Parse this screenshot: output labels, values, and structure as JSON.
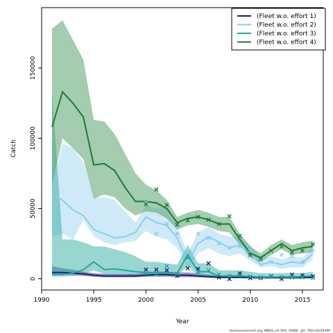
{
  "chart_data": {
    "type": "line",
    "title": "",
    "xlabel": "Year",
    "ylabel": "Catch",
    "xlim": [
      1990,
      2017
    ],
    "ylim": [
      -8000,
      193000
    ],
    "x_ticks": [
      1990,
      1995,
      2000,
      2005,
      2010,
      2015
    ],
    "y_ticks": [
      0,
      50000,
      100000,
      150000
    ],
    "legend_position": "top-right",
    "footnote": "stockassessment.org, WBSS_mf_004, r9468 , git: 792ca3e56499",
    "series": [
      {
        "name": "(Fleet w.o. effort 1)",
        "color": "#1f1d78",
        "band_color": "#2a2a86",
        "years": [
          1991,
          1992,
          1993,
          1994,
          1995,
          1996,
          1997,
          1998,
          1999,
          2000,
          2001,
          2002,
          2003,
          2004,
          2005,
          2006,
          2007,
          2008,
          2009,
          2010,
          2011,
          2012,
          2013,
          2014,
          2015,
          2016
        ],
        "fit": [
          4500,
          4500,
          4000,
          3500,
          2500,
          2000,
          2000,
          2000,
          2000,
          2500,
          3000,
          3000,
          2500,
          2500,
          2000,
          1500,
          1000,
          1000,
          1000,
          800,
          700,
          700,
          700,
          700,
          800,
          900
        ],
        "lower": [
          3000,
          3000,
          2500,
          2000,
          1500,
          1000,
          1000,
          1000,
          1000,
          1500,
          1500,
          1500,
          1200,
          1200,
          1000,
          700,
          400,
          400,
          400,
          300,
          250,
          250,
          250,
          250,
          300,
          350
        ],
        "upper": [
          9000,
          7500,
          6500,
          5000,
          4000,
          3500,
          3500,
          3500,
          3500,
          4500,
          5000,
          5000,
          4500,
          4500,
          4000,
          3000,
          2500,
          2500,
          2500,
          2000,
          1800,
          1800,
          1800,
          1800,
          2000,
          2200
        ],
        "obs_years": [
          2000,
          2001,
          2002,
          2003,
          2004,
          2005,
          2006,
          2007,
          2008,
          2009,
          2010,
          2011,
          2012,
          2013,
          2014,
          2015,
          2016
        ],
        "obs": [
          6500,
          6500,
          6000,
          2000,
          7500,
          7000,
          11000,
          1000,
          -200,
          3800,
          500,
          500,
          1800,
          -100,
          3000,
          2500,
          1800
        ]
      },
      {
        "name": "(Fleet w.o. effort 2)",
        "color": "#87ceeb",
        "band_color": "#9fd3f0",
        "years": [
          1991,
          1992,
          1993,
          1994,
          1995,
          1996,
          1997,
          1998,
          1999,
          2000,
          2001,
          2002,
          2003,
          2004,
          2005,
          2006,
          2007,
          2008,
          2009,
          2010,
          2011,
          2012,
          2013,
          2014,
          2015,
          2016
        ],
        "fit": [
          60000,
          56000,
          49000,
          45000,
          35000,
          32000,
          29000,
          30000,
          33000,
          44000,
          40000,
          38000,
          29000,
          12000,
          25000,
          30000,
          26000,
          22000,
          24000,
          18000,
          10000,
          12000,
          10000,
          12000,
          11000,
          18000
        ],
        "lower": [
          30000,
          32000,
          28000,
          42000,
          30000,
          26000,
          24000,
          26000,
          27000,
          34000,
          30000,
          28000,
          22000,
          8000,
          18000,
          22000,
          18000,
          16000,
          18000,
          13000,
          8000,
          9000,
          7000,
          8000,
          8000,
          14000
        ],
        "upper": [
          64000,
          96000,
          93000,
          83000,
          58000,
          58000,
          56000,
          48000,
          40000,
          52000,
          50000,
          50000,
          37000,
          18000,
          33000,
          37000,
          32000,
          30000,
          30000,
          24000,
          15000,
          16000,
          14000,
          16000,
          15000,
          23000
        ],
        "obs_years": [
          2000,
          2001,
          2002,
          2003,
          2004,
          2005,
          2006,
          2007,
          2008,
          2009,
          2010,
          2011,
          2012,
          2013,
          2014,
          2015,
          2016
        ],
        "obs": [
          54000,
          32000,
          39000,
          32000,
          12000,
          32000,
          29000,
          25000,
          22000,
          23000,
          20000,
          13000,
          12000,
          17000,
          16000,
          12000,
          20000
        ]
      },
      {
        "name": "(Fleet w.o. effort 3)",
        "color": "#20a79a",
        "band_color": "#35aea1",
        "years": [
          1991,
          1992,
          1993,
          1994,
          1995,
          1996,
          1997,
          1998,
          1999,
          2000,
          2001,
          2002,
          2003,
          2004,
          2005,
          2006,
          2007,
          2008,
          2009,
          2010,
          2011,
          2012,
          2013,
          2014,
          2015,
          2016
        ],
        "fit": [
          3000,
          3000,
          4000,
          6500,
          12000,
          6500,
          7000,
          6000,
          5000,
          4500,
          4500,
          4500,
          4000,
          17000,
          5000,
          5000,
          2000,
          2000,
          2000,
          1500,
          1000,
          1200,
          1200,
          1200,
          1500,
          2000
        ],
        "lower": [
          1500,
          1500,
          2000,
          3500,
          6000,
          3500,
          3500,
          3000,
          2500,
          2000,
          2000,
          2000,
          2000,
          9000,
          2500,
          2500,
          1000,
          1000,
          1000,
          700,
          500,
          600,
          600,
          600,
          700,
          900
        ],
        "upper": [
          133000,
          28000,
          28000,
          26000,
          23000,
          23000,
          21000,
          19000,
          16000,
          12000,
          12000,
          11000,
          10000,
          24000,
          11000,
          11000,
          6000,
          6000,
          6000,
          5000,
          4000,
          4000,
          4000,
          4000,
          4000,
          5000
        ],
        "obs_years": [
          2000,
          2001,
          2002,
          2003,
          2004,
          2005,
          2006,
          2007,
          2008,
          2009,
          2010,
          2011,
          2012,
          2013,
          2014,
          2015,
          2016
        ],
        "obs": [
          4000,
          3500,
          9000,
          3500,
          15000,
          5000,
          6000,
          3000,
          2000,
          2500,
          1500,
          1000,
          1500,
          1200,
          1000,
          1000,
          500
        ]
      },
      {
        "name": "(Fleet w.o. effort 4)",
        "color": "#1a7a35",
        "band_color": "#4a9a5e",
        "years": [
          1991,
          1992,
          1993,
          1994,
          1995,
          1996,
          1997,
          1998,
          1999,
          2000,
          2001,
          2002,
          2003,
          2004,
          2005,
          2006,
          2007,
          2008,
          2009,
          2010,
          2011,
          2012,
          2013,
          2014,
          2015,
          2016
        ],
        "fit": [
          108000,
          133000,
          125000,
          115000,
          81000,
          82000,
          77000,
          65000,
          55000,
          55000,
          54000,
          50000,
          40000,
          43000,
          44000,
          42000,
          39000,
          39000,
          28000,
          18000,
          15000,
          20000,
          25000,
          20000,
          22000,
          23000
        ],
        "lower": [
          65000,
          100000,
          93000,
          85000,
          57000,
          60000,
          58000,
          50000,
          45000,
          48000,
          47000,
          43000,
          35000,
          38000,
          39000,
          37000,
          34000,
          33000,
          24000,
          15000,
          12000,
          17000,
          21000,
          17000,
          18000,
          19000
        ],
        "upper": [
          178000,
          184000,
          170000,
          156000,
          113000,
          112000,
          103000,
          89000,
          75000,
          67000,
          63000,
          56000,
          44000,
          47000,
          49000,
          47000,
          44000,
          44000,
          32000,
          23000,
          18000,
          24000,
          28000,
          24000,
          26000,
          27000
        ],
        "obs_years": [
          2000,
          2001,
          2002,
          2003,
          2004,
          2005,
          2006,
          2007,
          2008,
          2009,
          2010,
          2011,
          2012,
          2013,
          2014,
          2015,
          2016
        ],
        "obs": [
          53000,
          63500,
          52500,
          38500,
          41500,
          44000,
          42000,
          39000,
          44500,
          30500,
          17000,
          14000,
          20000,
          23000,
          18500,
          20000,
          24500
        ]
      }
    ]
  }
}
